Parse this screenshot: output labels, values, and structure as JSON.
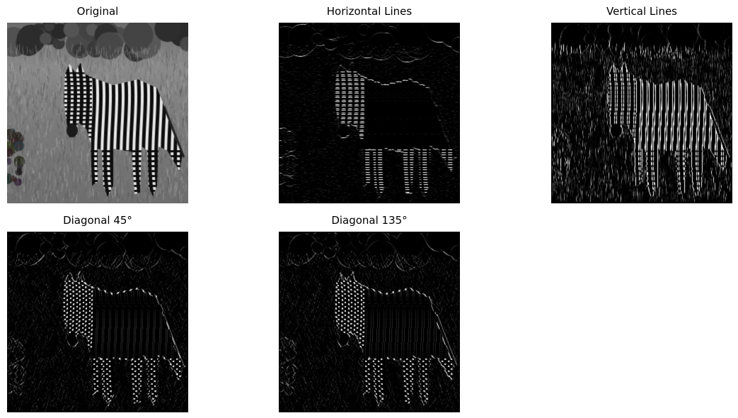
{
  "figure": {
    "panels": [
      {
        "key": "original",
        "title": "Original",
        "icon": "zebra-grayscale-photo",
        "filter": "none"
      },
      {
        "key": "horizontal",
        "title": "Horizontal Lines",
        "icon": "zebra-horizontal-edge-map",
        "filter": "horizontal"
      },
      {
        "key": "vertical",
        "title": "Vertical Lines",
        "icon": "zebra-vertical-edge-map",
        "filter": "vertical"
      },
      {
        "key": "diag45",
        "title": "Diagonal 45°",
        "icon": "zebra-diagonal-45-edge-map",
        "filter": "diag45"
      },
      {
        "key": "diag135",
        "title": "Diagonal 135°",
        "icon": "zebra-diagonal-135-edge-map",
        "filter": "diag135"
      }
    ]
  }
}
